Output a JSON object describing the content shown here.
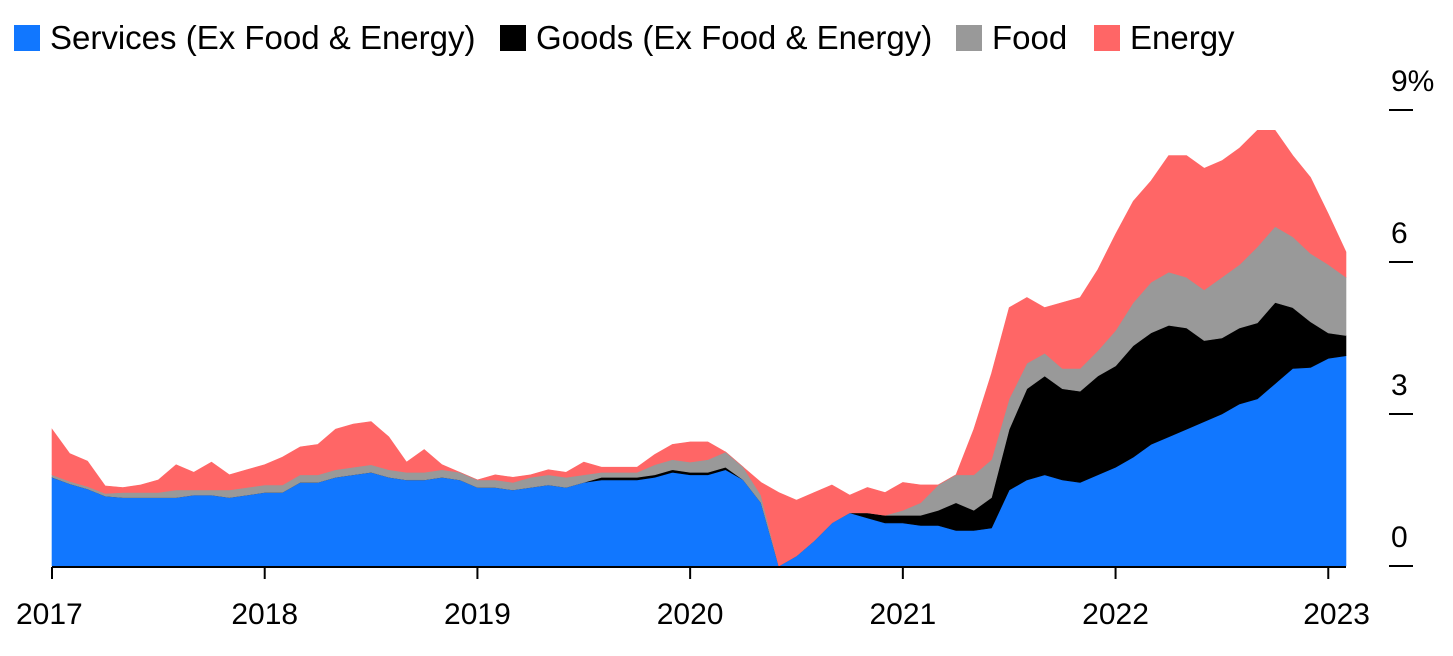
{
  "chart_data": {
    "type": "area",
    "stacked": true,
    "x_start": "2017-01",
    "x_frequency": "monthly",
    "x_ticks": [
      "2017",
      "2018",
      "2019",
      "2020",
      "2021",
      "2022",
      "2023"
    ],
    "y_ticks": [
      "0",
      "3",
      "6",
      "9%"
    ],
    "ylim": [
      0,
      9
    ],
    "legend_position": "top-left",
    "grid": false,
    "series": [
      {
        "name": "Services (Ex Food & Energy)",
        "color": "#1177ff",
        "values": [
          1.75,
          1.62,
          1.52,
          1.38,
          1.35,
          1.35,
          1.35,
          1.35,
          1.4,
          1.4,
          1.35,
          1.4,
          1.45,
          1.45,
          1.65,
          1.65,
          1.75,
          1.8,
          1.85,
          1.75,
          1.7,
          1.7,
          1.75,
          1.7,
          1.55,
          1.55,
          1.5,
          1.55,
          1.6,
          1.55,
          1.65,
          1.7,
          1.7,
          1.7,
          1.75,
          1.85,
          1.8,
          1.8,
          1.9,
          1.7,
          1.25,
          0.0,
          0.2,
          0.5,
          0.85,
          1.05,
          0.95,
          0.85,
          0.85,
          0.8,
          0.8,
          0.7,
          0.7,
          0.75,
          1.5,
          1.7,
          1.8,
          1.7,
          1.65,
          1.8,
          1.95,
          2.15,
          2.4,
          2.55,
          2.7,
          2.85,
          3.0,
          3.2,
          3.3,
          3.6,
          3.9,
          3.92,
          4.1,
          4.15
        ]
      },
      {
        "name": "Goods (Ex Food & Energy)",
        "color": "#000000",
        "values": [
          0,
          0,
          0,
          0,
          0,
          0,
          0,
          0,
          0,
          0,
          0,
          0,
          0,
          0,
          0,
          0,
          0,
          0,
          0,
          0,
          0,
          0,
          0,
          0,
          0,
          0,
          0,
          0,
          0,
          0,
          0,
          0.05,
          0.05,
          0.05,
          0.05,
          0.05,
          0.05,
          0.05,
          0.05,
          0,
          0,
          0,
          0,
          0,
          0,
          0.0,
          0.1,
          0.15,
          0.15,
          0.2,
          0.3,
          0.55,
          0.4,
          0.6,
          1.2,
          1.8,
          1.95,
          1.8,
          1.8,
          1.95,
          2.0,
          2.2,
          2.2,
          2.2,
          2.0,
          1.6,
          1.5,
          1.5,
          1.5,
          1.6,
          1.2,
          0.9,
          0.5,
          0.4
        ]
      },
      {
        "name": "Food",
        "color": "#999999",
        "values": [
          0.05,
          0.05,
          0.05,
          0.05,
          0.1,
          0.1,
          0.1,
          0.15,
          0.1,
          0.1,
          0.15,
          0.15,
          0.15,
          0.15,
          0.15,
          0.15,
          0.15,
          0.15,
          0.15,
          0.15,
          0.15,
          0.15,
          0.15,
          0.15,
          0.15,
          0.15,
          0.15,
          0.2,
          0.2,
          0.2,
          0.15,
          0.1,
          0.1,
          0.1,
          0.2,
          0.2,
          0.2,
          0.25,
          0.3,
          0.25,
          0.15,
          0.0,
          0.0,
          0.0,
          0.0,
          0.0,
          0.0,
          0.0,
          0.1,
          0.25,
          0.5,
          0.55,
          0.7,
          0.75,
          0.6,
          0.5,
          0.45,
          0.4,
          0.45,
          0.5,
          0.7,
          0.85,
          1.0,
          1.05,
          1.0,
          1.0,
          1.2,
          1.25,
          1.5,
          1.5,
          1.4,
          1.35,
          1.35,
          1.15
        ]
      },
      {
        "name": "Energy",
        "color": "#ff6666",
        "values": [
          0.9,
          0.55,
          0.5,
          0.15,
          0.1,
          0.15,
          0.25,
          0.5,
          0.35,
          0.55,
          0.3,
          0.35,
          0.4,
          0.55,
          0.55,
          0.6,
          0.8,
          0.85,
          0.85,
          0.65,
          0.2,
          0.45,
          0.1,
          0.0,
          0.0,
          0.1,
          0.1,
          0.05,
          0.1,
          0.1,
          0.25,
          0.1,
          0.1,
          0.1,
          0.2,
          0.3,
          0.4,
          0.35,
          0.0,
          0.0,
          0.25,
          1.45,
          1.1,
          0.95,
          0.75,
          0.35,
          0.5,
          0.45,
          0.55,
          0.35,
          0.0,
          0.0,
          0.9,
          1.7,
          1.8,
          1.3,
          0.9,
          1.3,
          1.4,
          1.6,
          1.9,
          2.0,
          2.0,
          2.3,
          2.4,
          2.4,
          2.3,
          2.3,
          2.3,
          1.9,
          1.6,
          1.5,
          1.0,
          0.5
        ]
      }
    ]
  }
}
